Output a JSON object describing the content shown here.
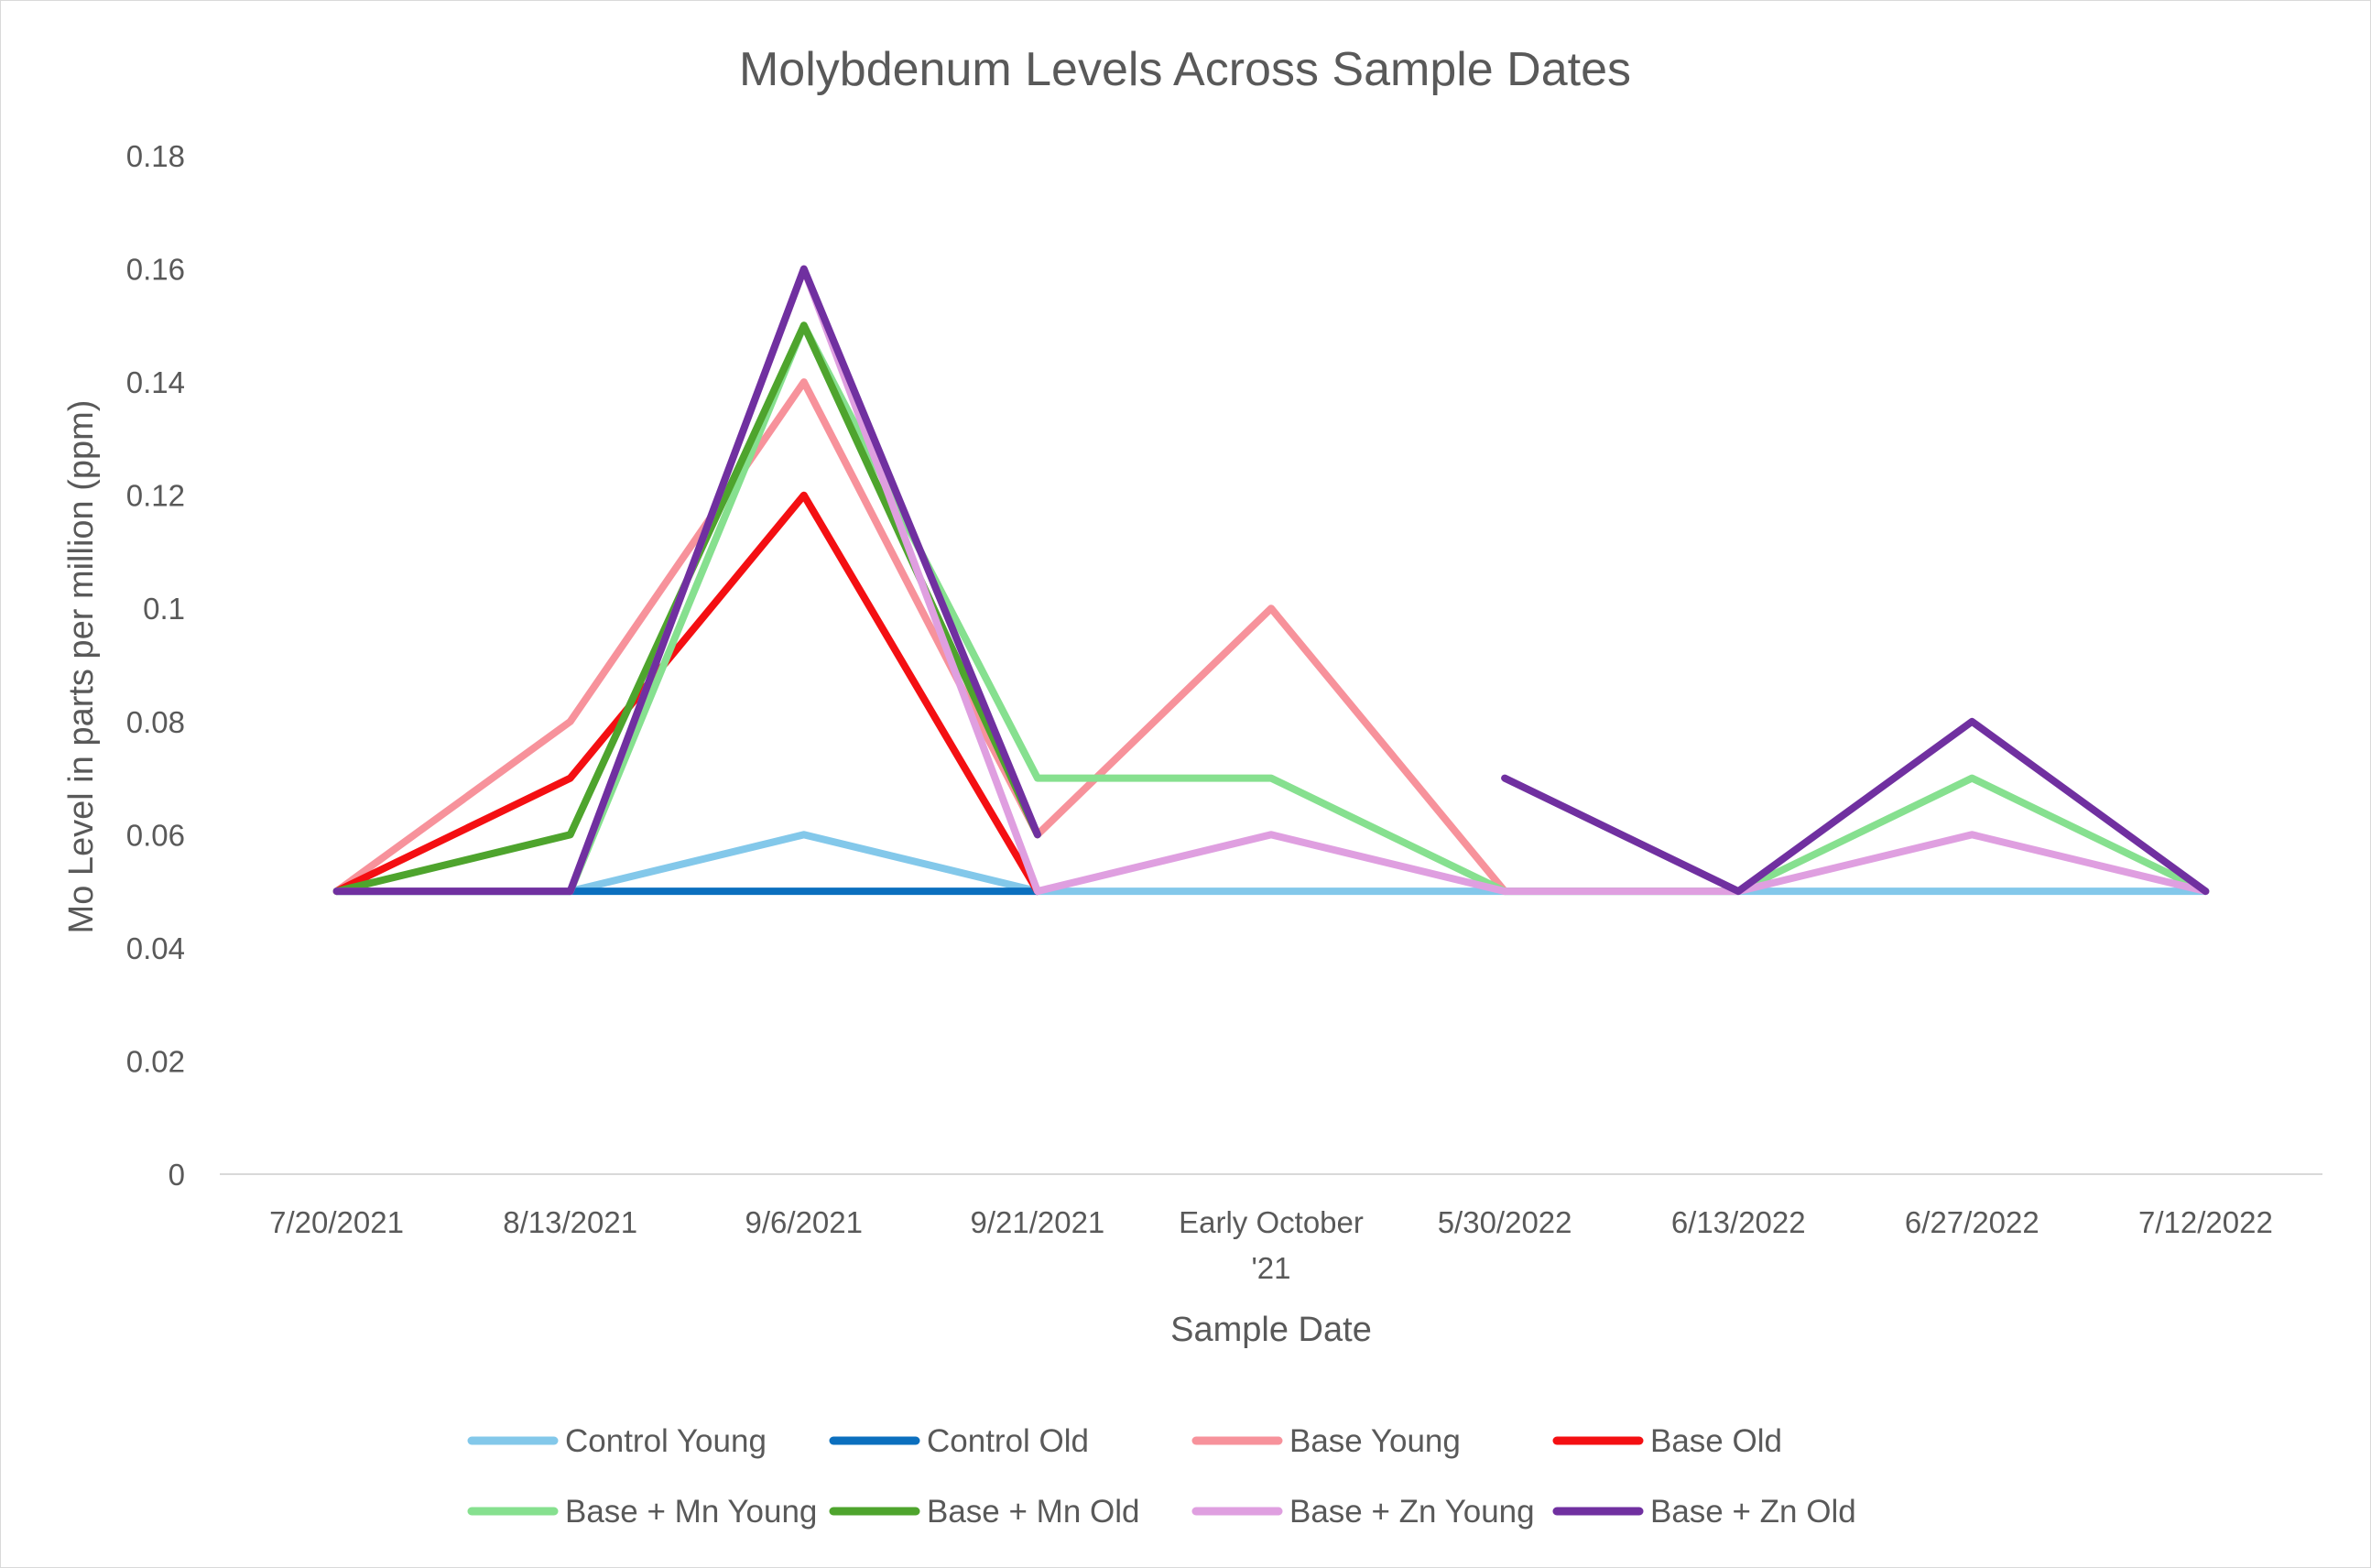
{
  "chart_data": {
    "type": "line",
    "title": "Molybdenum Levels Across Sample Dates",
    "xlabel": "Sample Date",
    "ylabel": "Mo Level in parts per million (ppm)",
    "categories": [
      [
        "7/20/2021"
      ],
      [
        "8/13/2021"
      ],
      [
        "9/6/2021"
      ],
      [
        "9/21/2021"
      ],
      [
        "Early October",
        "'21"
      ],
      [
        "5/30/2022"
      ],
      [
        "6/13/2022"
      ],
      [
        "6/27/2022"
      ],
      [
        "7/12/2022"
      ]
    ],
    "ylim": [
      0,
      0.18
    ],
    "yticks": [
      "0",
      "0.02",
      "0.04",
      "0.06",
      "0.08",
      "0.1",
      "0.12",
      "0.14",
      "0.16",
      "0.18"
    ],
    "grid": false,
    "legend_position": "bottom",
    "series": [
      {
        "name": "Control Young",
        "color": "#83c8ea",
        "values": [
          0.05,
          0.05,
          0.06,
          0.05,
          0.05,
          0.05,
          0.05,
          0.05,
          0.05
        ]
      },
      {
        "name": "Control Old",
        "color": "#0b6fbe",
        "values": [
          0.05,
          0.05,
          0.05,
          0.05,
          null,
          null,
          null,
          null,
          null
        ]
      },
      {
        "name": "Base Young",
        "color": "#f7929b",
        "values": [
          0.05,
          0.08,
          0.14,
          0.06,
          0.1,
          0.05,
          null,
          null,
          null
        ]
      },
      {
        "name": "Base Old",
        "color": "#f40f12",
        "values": [
          0.05,
          0.07,
          0.12,
          0.05,
          null,
          null,
          null,
          null,
          null
        ]
      },
      {
        "name": "Base + Mn Young",
        "color": "#86e08f",
        "values": [
          0.05,
          0.05,
          0.15,
          0.07,
          0.07,
          0.05,
          0.05,
          0.07,
          0.05
        ]
      },
      {
        "name": "Base + Mn Old",
        "color": "#4ea42d",
        "values": [
          0.05,
          0.06,
          0.15,
          0.06,
          null,
          null,
          null,
          null,
          null
        ]
      },
      {
        "name": "Base + Zn Young",
        "color": "#df9fe0",
        "values": [
          0.05,
          0.05,
          0.16,
          0.05,
          0.06,
          0.05,
          0.05,
          0.06,
          0.05
        ]
      },
      {
        "name": "Base + Zn Old",
        "color": "#7030a0",
        "values": [
          0.05,
          0.05,
          0.16,
          0.06,
          null,
          0.07,
          0.05,
          0.08,
          0.05
        ]
      }
    ]
  }
}
